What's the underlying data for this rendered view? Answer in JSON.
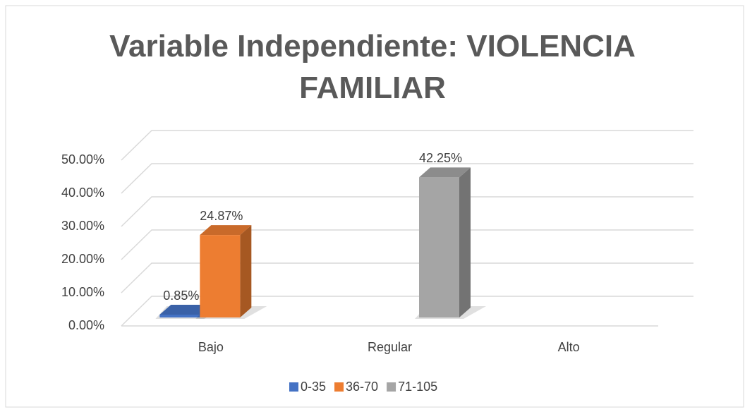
{
  "chart_data": {
    "type": "bar3d",
    "title": "Variable Independiente: VIOLENCIA FAMILIAR",
    "categories": [
      "Bajo",
      "Regular",
      "Alto"
    ],
    "series": [
      {
        "name": "0-35",
        "color": "#4472c4",
        "values": [
          0.85,
          null,
          null
        ],
        "value_labels": [
          "0.85%",
          null,
          null
        ]
      },
      {
        "name": "36-70",
        "color": "#ed7d31",
        "values": [
          24.87,
          null,
          null
        ],
        "value_labels": [
          "24.87%",
          null,
          null
        ]
      },
      {
        "name": "71-105",
        "color": "#a5a5a5",
        "values": [
          null,
          42.25,
          null
        ],
        "value_labels": [
          null,
          "42.25%",
          null
        ]
      }
    ],
    "ylim": [
      0,
      50
    ],
    "yticks": [
      {
        "value": 0,
        "label": "0.00%"
      },
      {
        "value": 10,
        "label": "10.00%"
      },
      {
        "value": 20,
        "label": "20.00%"
      },
      {
        "value": 30,
        "label": "30.00%"
      },
      {
        "value": 40,
        "label": "40.00%"
      },
      {
        "value": 50,
        "label": "50.00%"
      }
    ],
    "grid": true,
    "legend": "bottom"
  }
}
